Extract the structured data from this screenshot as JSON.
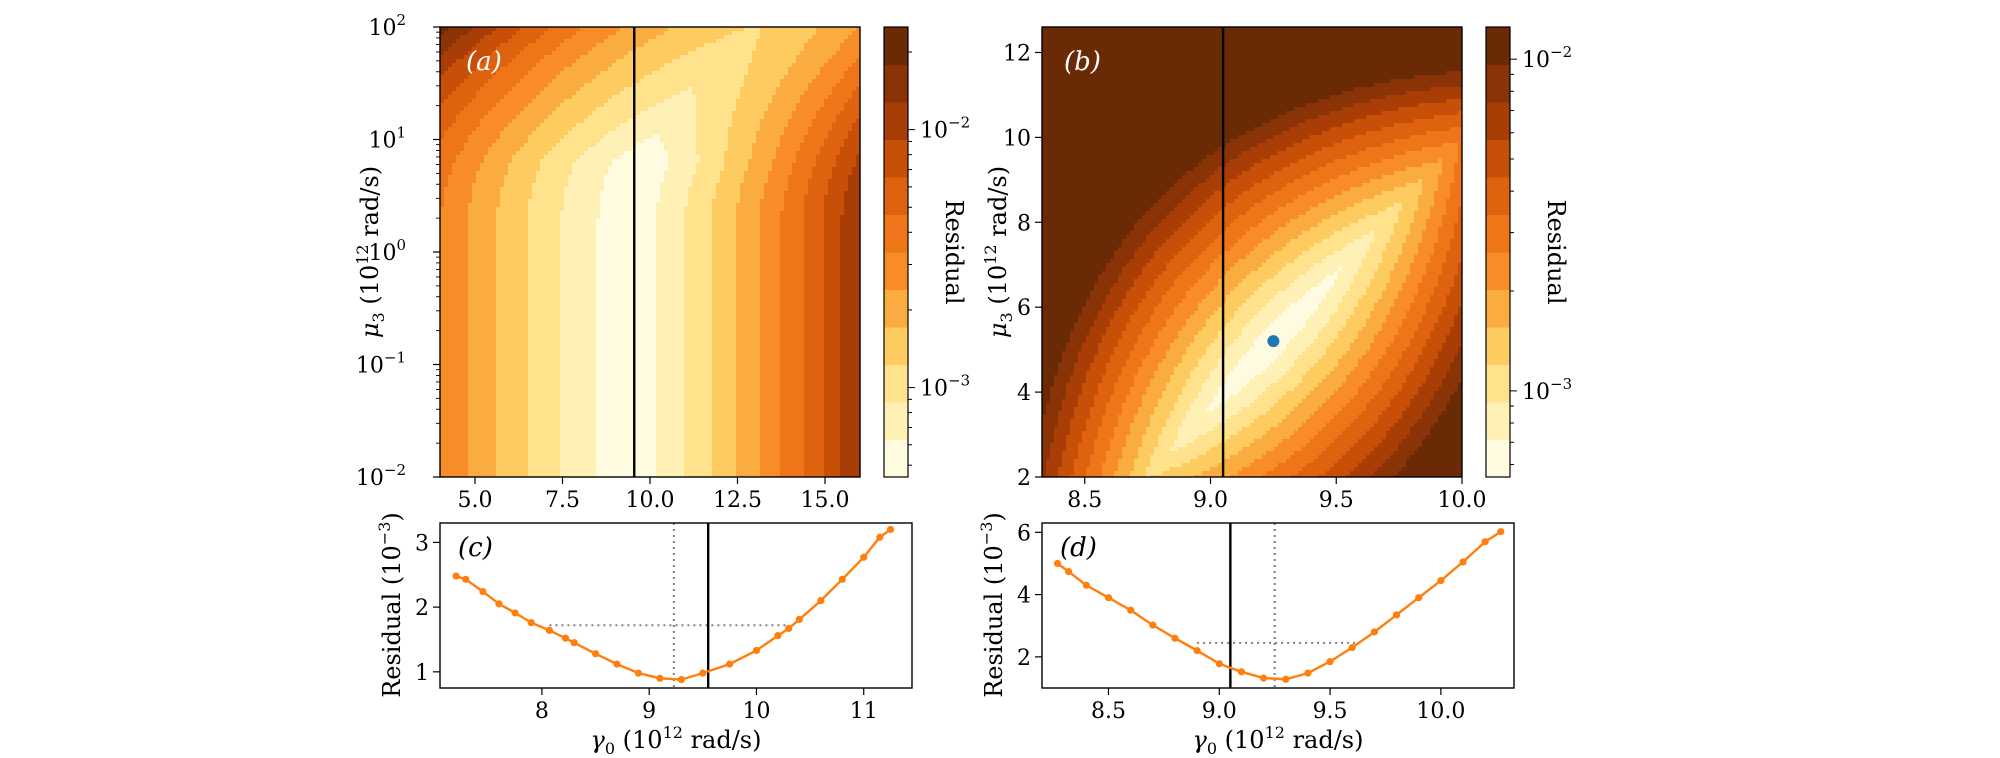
{
  "figure": {
    "colors": {
      "line": "#ff7f0e",
      "marker": "#ff7f0e",
      "minimum_marker": "#1f77b4",
      "vline": "#000000",
      "guide": "#7f7f7f"
    },
    "colormap": [
      "#fffbe1",
      "#fff0b6",
      "#ffe28b",
      "#fdcb60",
      "#fbac40",
      "#f88c26",
      "#ee7518",
      "#df620e",
      "#c84f07",
      "#a83d06",
      "#8a3306",
      "#6b2a06"
    ]
  },
  "chart_data": [
    {
      "id": "a",
      "type": "heatmap",
      "panel_label": "(a)",
      "xlabel": "",
      "ylabel_main": "μ",
      "ylabel_sub": "3",
      "ylabel_unit": " (10",
      "ylabel_unit_exp": "12",
      "ylabel_unit_end": " rad/s)",
      "xlim": [
        4.0,
        16.0
      ],
      "y_scale": "log",
      "ylim": [
        0.01,
        100
      ],
      "xticks": [
        5.0,
        7.5,
        10.0,
        12.5,
        15.0
      ],
      "xtick_labels": [
        "5.0",
        "7.5",
        "10.0",
        "12.5",
        "15.0"
      ],
      "yticks": [
        0.01,
        0.1,
        1,
        10,
        100
      ],
      "ytick_base": [
        "10",
        "10",
        "10",
        "10",
        "10"
      ],
      "ytick_exp": [
        "−2",
        "−1",
        "0",
        "1",
        "2"
      ],
      "vertical_line_x": 9.55,
      "colorbar": {
        "label": "Residual",
        "scale": "log",
        "range": [
          0.00045,
          0.025
        ],
        "tick_values": [
          0.001,
          0.01
        ],
        "tick_base": [
          "10",
          "10"
        ],
        "tick_exp": [
          "−3",
          "−2"
        ]
      },
      "levels": 12,
      "description_of_field": "Residual minimum valley near gamma0 ≈ 9.2–9.7 at low mu3, curving to larger gamma0 at large mu3"
    },
    {
      "id": "b",
      "type": "heatmap",
      "panel_label": "(b)",
      "xlabel": "",
      "ylabel_main": "μ",
      "ylabel_sub": "3",
      "ylabel_unit": " (10",
      "ylabel_unit_exp": "12",
      "ylabel_unit_end": " rad/s)",
      "xlim": [
        8.33,
        10.0
      ],
      "y_scale": "linear",
      "ylim": [
        2,
        12.6
      ],
      "xticks": [
        8.5,
        9.0,
        9.5,
        10.0
      ],
      "xtick_labels": [
        "8.5",
        "9.0",
        "9.5",
        "10.0"
      ],
      "yticks": [
        2,
        4,
        6,
        8,
        10,
        12
      ],
      "ytick_labels": [
        "2",
        "4",
        "6",
        "8",
        "10",
        "12"
      ],
      "vertical_line_x": 9.05,
      "minimum_point": {
        "x": 9.25,
        "y": 5.2
      },
      "colorbar": {
        "label": "Residual",
        "scale": "log",
        "range": [
          0.00055,
          0.0125
        ],
        "tick_values": [
          0.001,
          0.01
        ],
        "tick_base": [
          "10",
          "10"
        ],
        "tick_exp": [
          "−3",
          "−2"
        ]
      },
      "levels": 12
    },
    {
      "id": "c",
      "type": "line",
      "panel_label": "(c)",
      "xlabel_main": "γ",
      "xlabel_sub": "0",
      "xlabel_unit": " (10",
      "xlabel_unit_exp": "12",
      "xlabel_unit_end": " rad/s)",
      "ylabel_main": "Residual (10",
      "ylabel_exp": "−3",
      "ylabel_end": ")",
      "xlim": [
        7.05,
        11.45
      ],
      "ylim": [
        0.75,
        3.3
      ],
      "xticks": [
        8,
        9,
        10,
        11
      ],
      "xtick_labels": [
        "8",
        "9",
        "10",
        "11"
      ],
      "yticks": [
        1,
        2,
        3
      ],
      "ytick_labels": [
        "1",
        "2",
        "3"
      ],
      "x": [
        7.2,
        7.29,
        7.45,
        7.6,
        7.75,
        7.9,
        8.07,
        8.22,
        8.3,
        8.5,
        8.7,
        8.9,
        9.1,
        9.3,
        9.5,
        9.75,
        10.0,
        10.2,
        10.3,
        10.4,
        10.6,
        10.8,
        11.0,
        11.15,
        11.25
      ],
      "y": [
        2.48,
        2.43,
        2.24,
        2.05,
        1.91,
        1.76,
        1.64,
        1.52,
        1.45,
        1.28,
        1.12,
        0.98,
        0.9,
        0.88,
        0.98,
        1.12,
        1.33,
        1.56,
        1.67,
        1.81,
        2.1,
        2.43,
        2.77,
        3.08,
        3.2
      ],
      "vertical_line_x": 9.55,
      "guide_vertical_x": 9.23,
      "guide_horizontal_y": 1.72,
      "guide_horizontal_range": [
        8.07,
        10.27
      ]
    },
    {
      "id": "d",
      "type": "line",
      "panel_label": "(d)",
      "xlabel_main": "γ",
      "xlabel_sub": "0",
      "xlabel_unit": " (10",
      "xlabel_unit_exp": "12",
      "xlabel_unit_end": " rad/s)",
      "ylabel_main": "Residual (10",
      "ylabel_exp": "−3",
      "ylabel_end": ")",
      "xlim": [
        8.2,
        10.33
      ],
      "ylim": [
        1.0,
        6.3
      ],
      "xticks": [
        8.5,
        9.0,
        9.5,
        10.0
      ],
      "xtick_labels": [
        "8.5",
        "9.0",
        "9.5",
        "10.0"
      ],
      "yticks": [
        2,
        4,
        6
      ],
      "ytick_labels": [
        "2",
        "4",
        "6"
      ],
      "x": [
        8.27,
        8.32,
        8.4,
        8.5,
        8.6,
        8.7,
        8.8,
        8.9,
        9.0,
        9.1,
        9.2,
        9.3,
        9.4,
        9.5,
        9.6,
        9.7,
        9.8,
        9.9,
        10.0,
        10.1,
        10.2,
        10.27
      ],
      "y": [
        5.0,
        4.74,
        4.3,
        3.9,
        3.5,
        3.02,
        2.6,
        2.2,
        1.78,
        1.52,
        1.32,
        1.28,
        1.48,
        1.85,
        2.3,
        2.8,
        3.35,
        3.9,
        4.45,
        5.05,
        5.7,
        6.02
      ],
      "vertical_line_x": 9.05,
      "guide_vertical_x": 9.25,
      "guide_horizontal_y": 2.45,
      "guide_horizontal_range": [
        8.9,
        9.62
      ]
    }
  ]
}
